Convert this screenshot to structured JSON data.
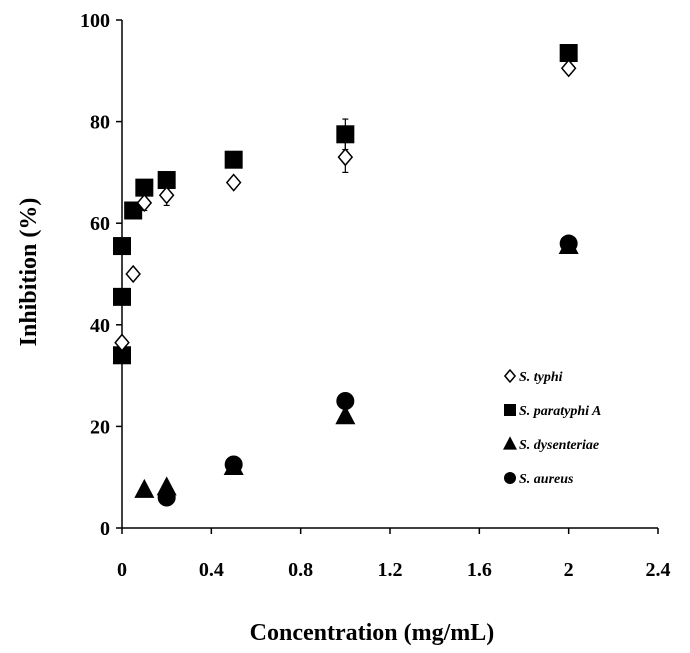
{
  "chart_data": {
    "type": "scatter",
    "xlabel": "Concentration (mg/mL)",
    "ylabel": "Inhibition (%)",
    "xlim": [
      0,
      2.4
    ],
    "ylim": [
      0,
      100
    ],
    "x_ticks": [
      "0",
      "0.4",
      "0.8",
      "1.2",
      "1.6",
      "2",
      "2.4"
    ],
    "y_ticks": [
      "0",
      "20",
      "40",
      "60",
      "80",
      "100"
    ],
    "grid": false,
    "legend_position": "bottom-right",
    "series": [
      {
        "name": "S. typhi",
        "marker": "open-diamond",
        "color": "#000000",
        "points": [
          {
            "x": 0,
            "y": 36.5,
            "err": 1.0
          },
          {
            "x": 0.05,
            "y": 50,
            "err": 1.0
          },
          {
            "x": 0.1,
            "y": 64,
            "err": 1.5
          },
          {
            "x": 0.2,
            "y": 65.5,
            "err": 2.0
          },
          {
            "x": 0.5,
            "y": 68,
            "err": 1.0
          },
          {
            "x": 1.0,
            "y": 73,
            "err": 3.0
          },
          {
            "x": 2.0,
            "y": 90.5,
            "err": 1.0
          }
        ]
      },
      {
        "name": "S. paratyphi A",
        "marker": "filled-square",
        "color": "#000000",
        "points": [
          {
            "x": 0,
            "y": 34,
            "err": 0
          },
          {
            "x": 0,
            "y": 45.5,
            "err": 0
          },
          {
            "x": 0,
            "y": 55.5,
            "err": 0
          },
          {
            "x": 0.05,
            "y": 62.5,
            "err": 0
          },
          {
            "x": 0.1,
            "y": 67,
            "err": 0
          },
          {
            "x": 0.2,
            "y": 68.5,
            "err": 0
          },
          {
            "x": 0.5,
            "y": 72.5,
            "err": 0
          },
          {
            "x": 1.0,
            "y": 77.5,
            "err": 3.0
          },
          {
            "x": 2.0,
            "y": 93.5,
            "err": 0
          }
        ]
      },
      {
        "name": "S. dysenteriae",
        "marker": "filled-triangle",
        "color": "#000000",
        "points": [
          {
            "x": 0.1,
            "y": 7.5,
            "err": 0
          },
          {
            "x": 0.2,
            "y": 8,
            "err": 0
          },
          {
            "x": 0.5,
            "y": 12,
            "err": 0
          },
          {
            "x": 1.0,
            "y": 22,
            "err": 0
          },
          {
            "x": 2.0,
            "y": 55.5,
            "err": 0
          }
        ]
      },
      {
        "name": "S. aureus",
        "marker": "filled-circle",
        "color": "#000000",
        "points": [
          {
            "x": 0.2,
            "y": 6,
            "err": 0
          },
          {
            "x": 0.5,
            "y": 12.5,
            "err": 0
          },
          {
            "x": 1.0,
            "y": 25,
            "err": 0
          },
          {
            "x": 2.0,
            "y": 56,
            "err": 0
          }
        ]
      }
    ]
  },
  "legend": {
    "items": [
      {
        "label": "S. typhi",
        "marker": "open-diamond"
      },
      {
        "label": "S. paratyphi A",
        "marker": "filled-square"
      },
      {
        "label": "S. dysenteriae",
        "marker": "filled-triangle"
      },
      {
        "label": "S. aureus",
        "marker": "filled-circle"
      }
    ]
  }
}
